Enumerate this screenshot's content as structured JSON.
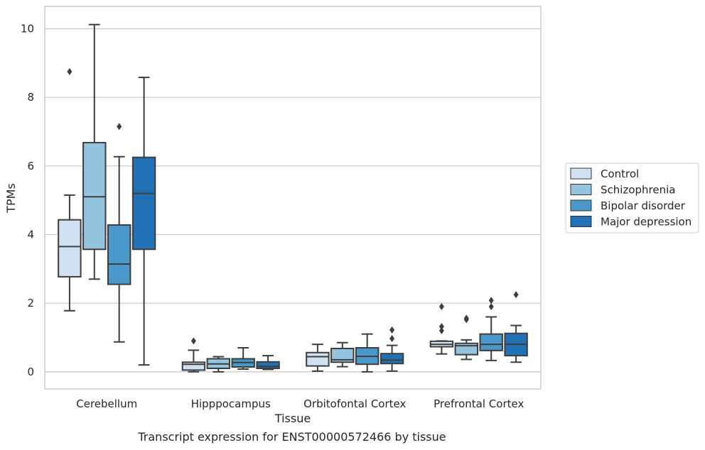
{
  "caption": "Transcript expression for ENST00000572466 by tissue",
  "chart_data": {
    "type": "box",
    "xlabel": "Tissue",
    "ylabel": "TPMs",
    "ylim": [
      -0.5,
      10.65
    ],
    "yticks": [
      0,
      2,
      4,
      6,
      8,
      10
    ],
    "grid": "horizontal",
    "legend_position": "right",
    "categories": [
      "Cerebellum",
      "Hipppocampus",
      "Orbitofontal Cortex",
      "Prefrontal Cortex"
    ],
    "series": [
      {
        "name": "Control",
        "color": "#d0e1f2",
        "boxes": [
          {
            "whislo": 1.78,
            "q1": 2.77,
            "med": 3.65,
            "q3": 4.43,
            "whishi": 5.15,
            "fliers": [
              8.75
            ]
          },
          {
            "whislo": 0.0,
            "q1": 0.05,
            "med": 0.22,
            "q3": 0.28,
            "whishi": 0.63,
            "fliers": [
              0.9
            ]
          },
          {
            "whislo": 0.02,
            "q1": 0.17,
            "med": 0.44,
            "q3": 0.56,
            "whishi": 0.8,
            "fliers": []
          },
          {
            "whislo": 0.52,
            "q1": 0.73,
            "med": 0.8,
            "q3": 0.89,
            "whishi": 0.9,
            "fliers": [
              1.2,
              1.32,
              1.9
            ]
          }
        ]
      },
      {
        "name": "Schizophrenia",
        "color": "#94c4df",
        "boxes": [
          {
            "whislo": 2.7,
            "q1": 3.57,
            "med": 5.1,
            "q3": 6.68,
            "whishi": 10.12,
            "fliers": []
          },
          {
            "whislo": 0.0,
            "q1": 0.1,
            "med": 0.23,
            "q3": 0.38,
            "whishi": 0.44,
            "fliers": []
          },
          {
            "whislo": 0.15,
            "q1": 0.28,
            "med": 0.35,
            "q3": 0.68,
            "whishi": 0.85,
            "fliers": []
          },
          {
            "whislo": 0.36,
            "q1": 0.5,
            "med": 0.76,
            "q3": 0.83,
            "whishi": 0.93,
            "fliers": [
              1.52,
              1.56
            ]
          }
        ]
      },
      {
        "name": "Bipolar disorder",
        "color": "#4a98c9",
        "boxes": [
          {
            "whislo": 0.87,
            "q1": 2.55,
            "med": 3.14,
            "q3": 4.28,
            "whishi": 6.27,
            "fliers": [
              7.15
            ]
          },
          {
            "whislo": 0.08,
            "q1": 0.14,
            "med": 0.27,
            "q3": 0.38,
            "whishi": 0.7,
            "fliers": []
          },
          {
            "whislo": 0.0,
            "q1": 0.22,
            "med": 0.45,
            "q3": 0.7,
            "whishi": 1.1,
            "fliers": []
          },
          {
            "whislo": 0.33,
            "q1": 0.62,
            "med": 0.8,
            "q3": 1.1,
            "whishi": 1.6,
            "fliers": [
              1.9,
              2.08
            ]
          }
        ]
      },
      {
        "name": "Major depression",
        "color": "#2271b5",
        "boxes": [
          {
            "whislo": 0.2,
            "q1": 3.57,
            "med": 5.2,
            "q3": 6.25,
            "whishi": 8.58,
            "fliers": []
          },
          {
            "whislo": 0.07,
            "q1": 0.1,
            "med": 0.16,
            "q3": 0.29,
            "whishi": 0.47,
            "fliers": []
          },
          {
            "whislo": 0.02,
            "q1": 0.24,
            "med": 0.34,
            "q3": 0.53,
            "whishi": 0.77,
            "fliers": [
              0.97,
              1.22
            ]
          },
          {
            "whislo": 0.28,
            "q1": 0.47,
            "med": 0.8,
            "q3": 1.12,
            "whishi": 1.35,
            "fliers": [
              2.25
            ]
          }
        ]
      }
    ]
  }
}
